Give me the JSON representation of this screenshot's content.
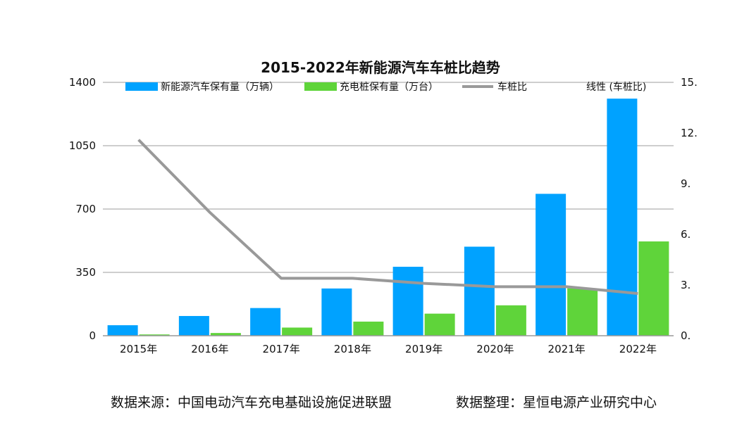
{
  "chart_data": {
    "type": "bar",
    "title": "2015-2022年新能源汽车车桩比趋势",
    "categories": [
      "2015年",
      "2016年",
      "2017年",
      "2018年",
      "2019年",
      "2020年",
      "2021年",
      "2022年"
    ],
    "series": [
      {
        "name": "新能源汽车保有量（万辆）",
        "type": "bar",
        "axis": "left",
        "color": "#00a2ff",
        "values": [
          58,
          109,
          153,
          261,
          381,
          492,
          784,
          1310
        ]
      },
      {
        "name": "充电桩保有量（万台）",
        "type": "bar",
        "axis": "left",
        "color": "#5fd43a",
        "values": [
          7,
          15,
          45,
          78,
          122,
          168,
          262,
          521
        ]
      },
      {
        "name": "车桩比",
        "type": "line",
        "axis": "right",
        "color": "#999999",
        "values": [
          11.6,
          7.3,
          3.4,
          3.4,
          3.1,
          2.9,
          2.9,
          2.5
        ]
      }
    ],
    "legend_extra": "线性 (车桩比)",
    "y_left": {
      "ticks": [
        "0",
        "350",
        "700",
        "1050",
        "1400"
      ],
      "min": 0,
      "max": 1400
    },
    "y_right": {
      "ticks": [
        "0.",
        "3.",
        "6.",
        "9.",
        "12.",
        "15."
      ],
      "min": 0,
      "max": 15
    },
    "grid": true,
    "legend_position": "top"
  },
  "footer": {
    "source": "数据来源：中国电动汽车充电基础设施促进联盟",
    "compiled": "数据整理：星恒电源产业研究中心"
  }
}
